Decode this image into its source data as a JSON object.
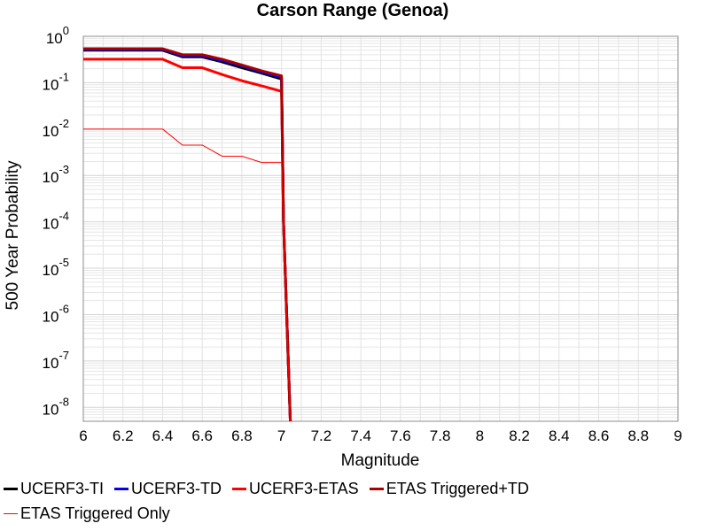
{
  "chart_data": {
    "type": "line",
    "title": "Carson Range (Genoa)",
    "xlabel": "Magnitude",
    "ylabel": "500 Year Probability",
    "xlim": [
      6,
      9
    ],
    "ylim_log10": [
      -8.3,
      0
    ],
    "y_scale": "log",
    "grid": true,
    "legend_position": "bottom",
    "x_ticks": [
      "6",
      "6.2",
      "6.4",
      "6.6",
      "6.8",
      "7",
      "7.2",
      "7.4",
      "7.6",
      "7.8",
      "8",
      "8.2",
      "8.4",
      "8.6",
      "8.8",
      "9"
    ],
    "y_ticks": [
      {
        "base": "10",
        "exp": "0"
      },
      {
        "base": "10",
        "exp": "-1"
      },
      {
        "base": "10",
        "exp": "-2"
      },
      {
        "base": "10",
        "exp": "-3"
      },
      {
        "base": "10",
        "exp": "-4"
      },
      {
        "base": "10",
        "exp": "-5"
      },
      {
        "base": "10",
        "exp": "-6"
      },
      {
        "base": "10",
        "exp": "-7"
      },
      {
        "base": "10",
        "exp": "-8"
      }
    ],
    "series": [
      {
        "name": "UCERF3-TI",
        "color": "#000000",
        "width": 3,
        "x": [
          6.0,
          6.4,
          6.5,
          6.6,
          6.7,
          6.8,
          6.9,
          7.0,
          7.01,
          7.05
        ],
        "y": [
          0.5,
          0.5,
          0.36,
          0.36,
          0.28,
          0.21,
          0.16,
          0.12,
          0.0001,
          1e-09
        ]
      },
      {
        "name": "UCERF3-TD",
        "color": "#0000ff",
        "width": 3,
        "x": [
          6.0,
          6.4,
          6.5,
          6.6,
          6.7,
          6.8,
          6.9,
          7.0,
          7.01,
          7.05
        ],
        "y": [
          0.52,
          0.52,
          0.38,
          0.38,
          0.3,
          0.23,
          0.17,
          0.13,
          0.0001,
          1e-09
        ]
      },
      {
        "name": "UCERF3-ETAS",
        "color": "#ff0000",
        "width": 3,
        "x": [
          6.0,
          6.4,
          6.5,
          6.6,
          6.7,
          6.8,
          6.9,
          7.0,
          7.01,
          7.05
        ],
        "y": [
          0.32,
          0.32,
          0.21,
          0.21,
          0.15,
          0.11,
          0.085,
          0.065,
          0.0001,
          1e-09
        ]
      },
      {
        "name": "ETAS Triggered+TD",
        "color": "#aa0000",
        "width": 3,
        "x": [
          6.0,
          6.4,
          6.5,
          6.6,
          6.7,
          6.8,
          6.9,
          7.0,
          7.01,
          7.05
        ],
        "y": [
          0.54,
          0.54,
          0.4,
          0.4,
          0.32,
          0.24,
          0.18,
          0.14,
          0.0001,
          1e-09
        ]
      },
      {
        "name": "ETAS Triggered Only",
        "color": "#ff0000",
        "width": 1,
        "x": [
          6.0,
          6.4,
          6.5,
          6.6,
          6.7,
          6.8,
          6.9,
          7.0,
          7.01,
          7.05
        ],
        "y": [
          0.01,
          0.01,
          0.0045,
          0.0045,
          0.0026,
          0.0026,
          0.0019,
          0.0019,
          0.0001,
          1e-09
        ]
      }
    ]
  }
}
